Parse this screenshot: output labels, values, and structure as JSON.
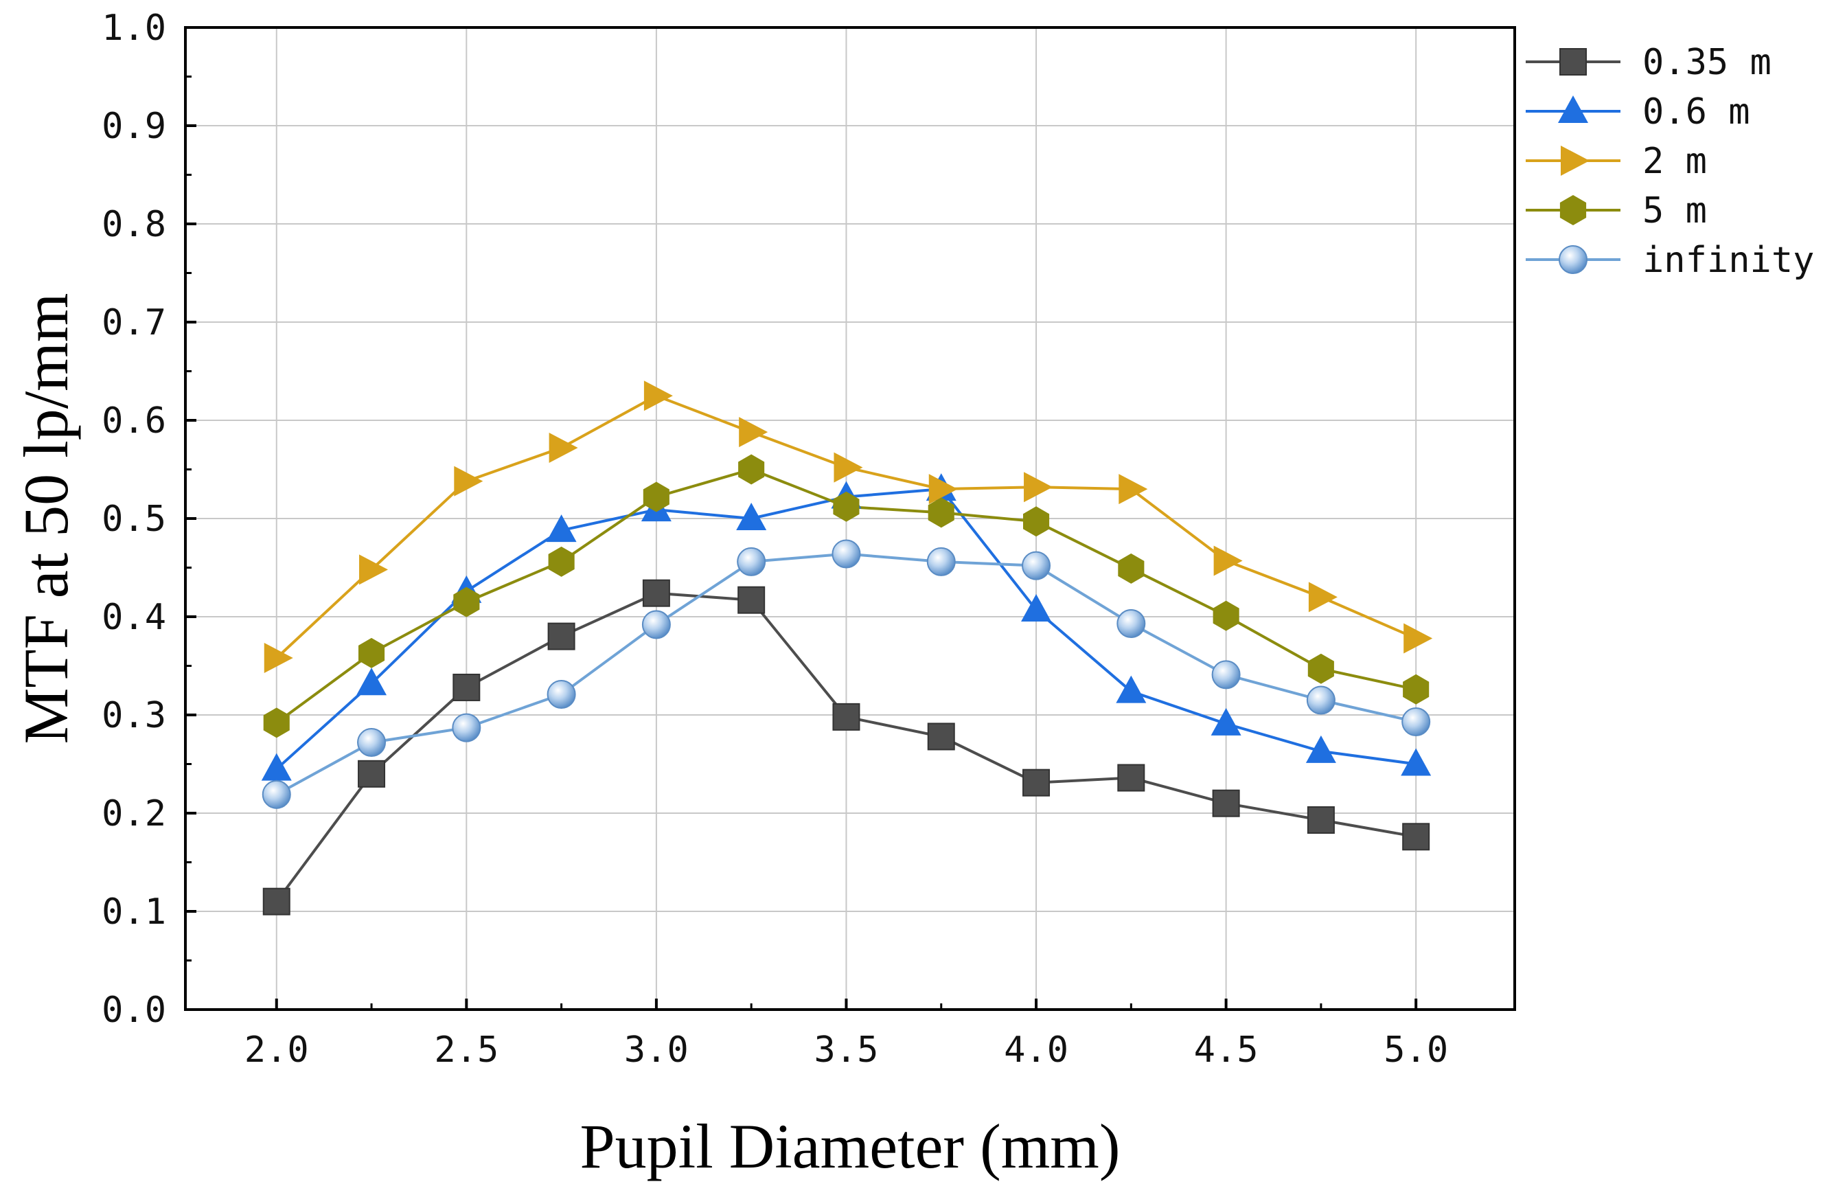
{
  "chart_data": {
    "type": "line",
    "title": "",
    "xlabel": "Pupil Diameter (mm)",
    "ylabel": "MTF at 50 lp/mm",
    "xlim": [
      1.76,
      5.26
    ],
    "ylim": [
      0.0,
      1.0
    ],
    "grid": true,
    "legend_position": "right",
    "x": [
      2.0,
      2.25,
      2.5,
      2.75,
      3.0,
      3.25,
      3.5,
      3.75,
      4.0,
      4.25,
      4.5,
      4.75,
      5.0
    ],
    "xticks": [
      "2.0",
      "2.5",
      "3.0",
      "3.5",
      "4.0",
      "4.5",
      "5.0"
    ],
    "xtick_values": [
      2.0,
      2.5,
      3.0,
      3.5,
      4.0,
      4.5,
      5.0
    ],
    "yticks": [
      "0.0",
      "0.1",
      "0.2",
      "0.3",
      "0.4",
      "0.5",
      "0.6",
      "0.7",
      "0.8",
      "0.9",
      "1.0"
    ],
    "ytick_values": [
      0.0,
      0.1,
      0.2,
      0.3,
      0.4,
      0.5,
      0.6,
      0.7,
      0.8,
      0.9,
      1.0
    ],
    "series": [
      {
        "name": "0.35 m",
        "color": "#4d4d4d",
        "marker": "square",
        "values": [
          0.11,
          0.24,
          0.328,
          0.38,
          0.424,
          0.417,
          0.298,
          0.278,
          0.231,
          0.236,
          0.21,
          0.193,
          0.176
        ]
      },
      {
        "name": "0.6 m",
        "color": "#1f6fe0",
        "marker": "triangle-up",
        "values": [
          0.245,
          0.332,
          0.426,
          0.488,
          0.509,
          0.5,
          0.522,
          0.53,
          0.407,
          0.324,
          0.291,
          0.263,
          0.25
        ]
      },
      {
        "name": "2 m",
        "color": "#d9a21b",
        "marker": "triangle-right",
        "values": [
          0.358,
          0.448,
          0.538,
          0.572,
          0.625,
          0.588,
          0.552,
          0.53,
          0.532,
          0.53,
          0.457,
          0.42,
          0.378
        ]
      },
      {
        "name": "5 m",
        "color": "#8c8c0e",
        "marker": "hexagon",
        "values": [
          0.292,
          0.363,
          0.415,
          0.456,
          0.522,
          0.55,
          0.512,
          0.506,
          0.497,
          0.449,
          0.401,
          0.347,
          0.326
        ]
      },
      {
        "name": "infinity",
        "color": "#6fa3d6",
        "marker": "sphere",
        "values": [
          0.219,
          0.272,
          0.287,
          0.321,
          0.392,
          0.456,
          0.464,
          0.456,
          0.452,
          0.393,
          0.341,
          0.315,
          0.293
        ]
      }
    ]
  }
}
